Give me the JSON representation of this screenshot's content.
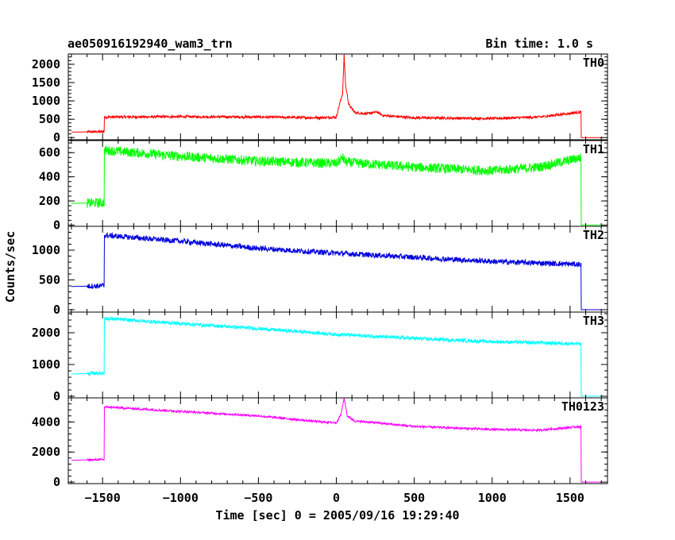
{
  "chart_data": {
    "type": "line",
    "title_left": "ae050916192940_wam3_trn",
    "title_right": "Bin time: 1.0 s",
    "xlabel": "Time [sec] 0 = 2005/09/16 19:29:40",
    "ylabel": "Counts/sec",
    "xlim": [
      -1720,
      1740
    ],
    "x_ticks": [
      -1500,
      -1000,
      -500,
      0,
      500,
      1000,
      1500
    ],
    "x_tick_labels": [
      "−1500",
      "−1000",
      "−500",
      "0",
      "500",
      "1000",
      "1500"
    ],
    "grid": false,
    "panels": [
      {
        "name": "TH0",
        "color": "#ff0000",
        "ylim": [
          -60,
          2280
        ],
        "y_ticks": [
          0,
          500,
          1000,
          1500,
          2000
        ],
        "noise": 35,
        "knots": [
          [
            -1700,
            150
          ],
          [
            -1490,
            160
          ],
          [
            -1488,
            560
          ],
          [
            -1000,
            570
          ],
          [
            -500,
            560
          ],
          [
            -100,
            540
          ],
          [
            0,
            560
          ],
          [
            20,
            900
          ],
          [
            40,
            1200
          ],
          [
            50,
            2250
          ],
          [
            60,
            1400
          ],
          [
            80,
            900
          ],
          [
            120,
            680
          ],
          [
            200,
            650
          ],
          [
            260,
            700
          ],
          [
            300,
            600
          ],
          [
            500,
            540
          ],
          [
            1000,
            520
          ],
          [
            1300,
            560
          ],
          [
            1500,
            660
          ],
          [
            1570,
            700
          ],
          [
            1572,
            0
          ],
          [
            1700,
            0
          ]
        ]
      },
      {
        "name": "TH1",
        "color": "#00ff00",
        "ylim": [
          -10,
          700
        ],
        "y_ticks": [
          0,
          200,
          400,
          600
        ],
        "noise": 40,
        "knots": [
          [
            -1700,
            180
          ],
          [
            -1490,
            185
          ],
          [
            -1488,
            620
          ],
          [
            -1000,
            570
          ],
          [
            -500,
            530
          ],
          [
            0,
            510
          ],
          [
            40,
            560
          ],
          [
            60,
            520
          ],
          [
            500,
            480
          ],
          [
            1000,
            450
          ],
          [
            1300,
            480
          ],
          [
            1570,
            560
          ],
          [
            1572,
            0
          ],
          [
            1700,
            0
          ]
        ]
      },
      {
        "name": "TH2",
        "color": "#0000dd",
        "ylim": [
          -40,
          1400
        ],
        "y_ticks": [
          0,
          500,
          1000
        ],
        "noise": 45,
        "knots": [
          [
            -1700,
            390
          ],
          [
            -1490,
            400
          ],
          [
            -1488,
            1250
          ],
          [
            -1000,
            1150
          ],
          [
            -500,
            1030
          ],
          [
            0,
            950
          ],
          [
            500,
            880
          ],
          [
            1000,
            810
          ],
          [
            1570,
            760
          ],
          [
            1572,
            0
          ],
          [
            1700,
            0
          ]
        ]
      },
      {
        "name": "TH3",
        "color": "#00ffff",
        "ylim": [
          -50,
          2650
        ],
        "y_ticks": [
          0,
          1000,
          2000
        ],
        "noise": 55,
        "knots": [
          [
            -1700,
            700
          ],
          [
            -1490,
            730
          ],
          [
            -1488,
            2450
          ],
          [
            -1000,
            2290
          ],
          [
            -500,
            2130
          ],
          [
            0,
            1950
          ],
          [
            500,
            1820
          ],
          [
            1000,
            1720
          ],
          [
            1570,
            1650
          ],
          [
            1572,
            0
          ],
          [
            1700,
            0
          ]
        ]
      },
      {
        "name": "TH0123",
        "color": "#ff00ff",
        "ylim": [
          -100,
          5600
        ],
        "y_ticks": [
          0,
          2000,
          4000
        ],
        "noise": 70,
        "knots": [
          [
            -1700,
            1450
          ],
          [
            -1490,
            1500
          ],
          [
            -1488,
            5000
          ],
          [
            -1000,
            4700
          ],
          [
            -500,
            4400
          ],
          [
            -100,
            4000
          ],
          [
            0,
            3950
          ],
          [
            30,
            4500
          ],
          [
            50,
            5600
          ],
          [
            70,
            4400
          ],
          [
            120,
            4050
          ],
          [
            200,
            4000
          ],
          [
            500,
            3700
          ],
          [
            1000,
            3500
          ],
          [
            1300,
            3450
          ],
          [
            1570,
            3700
          ],
          [
            1572,
            0
          ],
          [
            1700,
            0
          ]
        ]
      }
    ]
  }
}
